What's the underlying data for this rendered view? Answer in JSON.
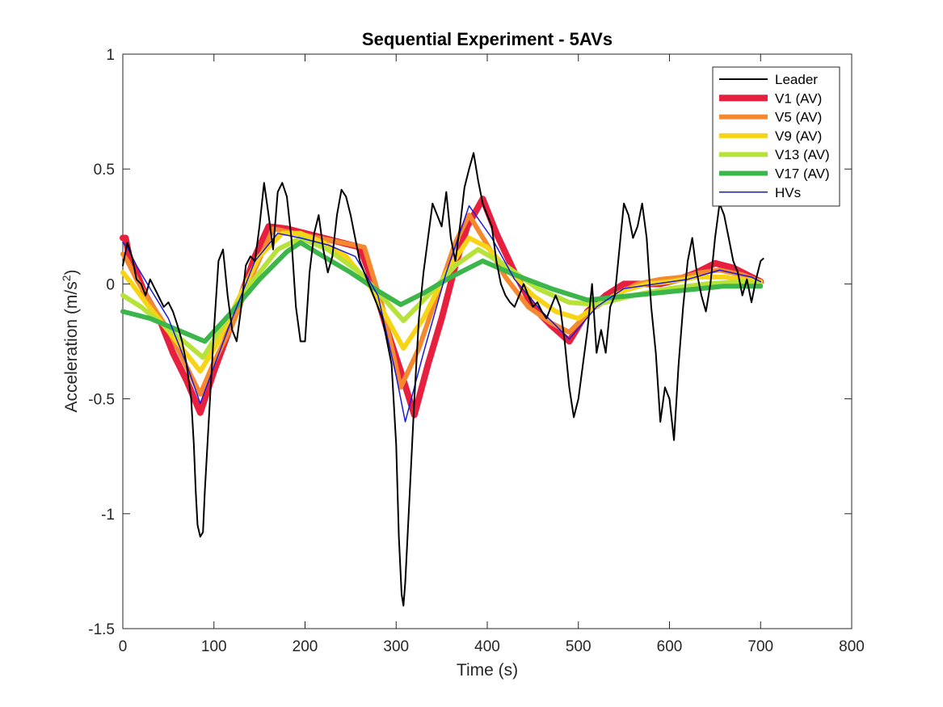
{
  "chart_data": {
    "type": "line",
    "title": "Sequential Experiment - 5AVs",
    "xlabel": "Time (s)",
    "ylabel_main": "Acceleration (m/s",
    "ylabel_sup": "2",
    "ylabel_close": ")",
    "xlim": [
      0,
      800
    ],
    "ylim": [
      -1.5,
      1
    ],
    "xticks": [
      0,
      100,
      200,
      300,
      400,
      500,
      600,
      700,
      800
    ],
    "xtick_labels": [
      "0",
      "100",
      "200",
      "300",
      "400",
      "500",
      "600",
      "700",
      "800"
    ],
    "yticks": [
      -1.5,
      -1,
      -0.5,
      0,
      0.5,
      1
    ],
    "ytick_labels": [
      "-1.5",
      "-1",
      "-0.5",
      "0",
      "0.5",
      "1"
    ],
    "grid": false,
    "legend_position": "top-right",
    "legend": [
      {
        "label": "Leader",
        "color": "#000000"
      },
      {
        "label": "V1 (AV)",
        "color": "#e8203f"
      },
      {
        "label": "V5 (AV)",
        "color": "#f5892f"
      },
      {
        "label": "V9 (AV)",
        "color": "#f7d416"
      },
      {
        "label": "V13 (AV)",
        "color": "#b7e23a"
      },
      {
        "label": "V17 (AV)",
        "color": "#3cb54a"
      },
      {
        "label": "HVs",
        "color": "#1a1adb"
      }
    ],
    "series": [
      {
        "name": "Leader",
        "color": "#000000",
        "x": [
          0,
          5,
          10,
          15,
          20,
          25,
          30,
          35,
          40,
          45,
          50,
          55,
          60,
          65,
          70,
          75,
          78,
          80,
          82,
          85,
          88,
          90,
          95,
          100,
          105,
          110,
          115,
          120,
          125,
          130,
          135,
          140,
          145,
          150,
          155,
          160,
          165,
          170,
          175,
          180,
          185,
          190,
          195,
          200,
          205,
          210,
          215,
          220,
          225,
          230,
          235,
          240,
          245,
          250,
          255,
          260,
          265,
          270,
          275,
          280,
          285,
          290,
          295,
          300,
          303,
          306,
          308,
          310,
          315,
          320,
          325,
          330,
          335,
          340,
          345,
          350,
          355,
          360,
          365,
          370,
          375,
          380,
          385,
          390,
          395,
          400,
          405,
          410,
          415,
          420,
          425,
          430,
          435,
          440,
          445,
          450,
          455,
          460,
          465,
          470,
          475,
          480,
          485,
          490,
          495,
          500,
          505,
          510,
          515,
          520,
          525,
          530,
          535,
          540,
          545,
          550,
          555,
          560,
          565,
          570,
          575,
          580,
          585,
          590,
          595,
          600,
          605,
          610,
          615,
          620,
          625,
          630,
          635,
          640,
          645,
          650,
          655,
          660,
          665,
          670,
          675,
          680,
          685,
          690,
          695,
          700,
          703
        ],
        "y": [
          0.08,
          0.18,
          0.12,
          0.02,
          0.0,
          -0.05,
          0.02,
          -0.02,
          -0.06,
          -0.1,
          -0.08,
          -0.12,
          -0.18,
          -0.25,
          -0.35,
          -0.5,
          -0.7,
          -0.9,
          -1.05,
          -1.1,
          -1.08,
          -0.9,
          -0.55,
          -0.2,
          0.1,
          0.15,
          -0.05,
          -0.2,
          -0.25,
          -0.1,
          0.08,
          0.12,
          0.1,
          0.25,
          0.44,
          0.3,
          0.15,
          0.4,
          0.44,
          0.38,
          0.2,
          -0.1,
          -0.25,
          -0.25,
          0.05,
          0.22,
          0.3,
          0.15,
          0.05,
          0.12,
          0.3,
          0.41,
          0.38,
          0.3,
          0.2,
          0.1,
          0.05,
          0.0,
          -0.05,
          -0.1,
          -0.15,
          -0.25,
          -0.35,
          -0.7,
          -1.1,
          -1.35,
          -1.4,
          -1.3,
          -0.9,
          -0.5,
          -0.15,
          0.05,
          0.2,
          0.35,
          0.3,
          0.25,
          0.4,
          0.2,
          0.1,
          0.25,
          0.42,
          0.5,
          0.57,
          0.45,
          0.35,
          0.3,
          0.25,
          0.1,
          0.0,
          -0.05,
          -0.08,
          -0.1,
          -0.05,
          0.0,
          -0.05,
          -0.1,
          -0.08,
          -0.12,
          -0.15,
          -0.1,
          -0.05,
          -0.1,
          -0.25,
          -0.45,
          -0.58,
          -0.5,
          -0.35,
          -0.2,
          0.0,
          -0.3,
          -0.2,
          -0.3,
          -0.1,
          -0.05,
          0.15,
          0.35,
          0.3,
          0.2,
          0.25,
          0.35,
          0.2,
          -0.1,
          -0.3,
          -0.6,
          -0.45,
          -0.5,
          -0.68,
          -0.35,
          -0.1,
          0.1,
          0.2,
          0.05,
          -0.05,
          -0.12,
          0.0,
          0.2,
          0.35,
          0.3,
          0.2,
          0.1,
          0.05,
          -0.05,
          0.02,
          -0.08,
          0.02,
          0.1,
          0.11
        ]
      },
      {
        "name": "V1 (AV)",
        "color": "#e8203f",
        "x": [
          0,
          3,
          8,
          15,
          25,
          40,
          55,
          70,
          85,
          100,
          115,
          130,
          145,
          160,
          180,
          200,
          220,
          240,
          260,
          275,
          290,
          305,
          320,
          335,
          350,
          365,
          378,
          395,
          410,
          430,
          450,
          470,
          490,
          510,
          530,
          550,
          570,
          590,
          610,
          630,
          650,
          670,
          685,
          700
        ],
        "y": [
          0.2,
          0.2,
          0.1,
          0.05,
          -0.05,
          -0.15,
          -0.3,
          -0.42,
          -0.56,
          -0.38,
          -0.22,
          -0.05,
          0.12,
          0.25,
          0.24,
          0.22,
          0.2,
          0.18,
          0.16,
          0.0,
          -0.2,
          -0.38,
          -0.57,
          -0.35,
          -0.15,
          0.08,
          0.25,
          0.37,
          0.22,
          0.05,
          -0.1,
          -0.18,
          -0.25,
          -0.12,
          -0.05,
          0.0,
          0.0,
          0.0,
          0.02,
          0.05,
          0.09,
          0.07,
          0.04,
          0.01
        ]
      },
      {
        "name": "V5 (AV)",
        "color": "#f5892f",
        "x": [
          0,
          5,
          15,
          30,
          50,
          70,
          85,
          100,
          120,
          140,
          165,
          190,
          215,
          240,
          265,
          285,
          305,
          325,
          345,
          365,
          380,
          400,
          420,
          445,
          470,
          490,
          515,
          540,
          565,
          590,
          615,
          635,
          655,
          680,
          700
        ],
        "y": [
          0.13,
          0.1,
          0.02,
          -0.08,
          -0.2,
          -0.36,
          -0.48,
          -0.34,
          -0.18,
          0.02,
          0.24,
          0.22,
          0.2,
          0.18,
          0.16,
          -0.1,
          -0.45,
          -0.28,
          -0.05,
          0.18,
          0.3,
          0.17,
          0.03,
          -0.1,
          -0.17,
          -0.21,
          -0.11,
          -0.05,
          0.0,
          0.02,
          0.03,
          0.05,
          0.06,
          0.04,
          0.01
        ]
      },
      {
        "name": "V9 (AV)",
        "color": "#f7d416",
        "x": [
          0,
          10,
          25,
          45,
          65,
          85,
          105,
          125,
          150,
          175,
          195,
          220,
          245,
          270,
          290,
          308,
          330,
          355,
          380,
          400,
          425,
          450,
          475,
          500,
          525,
          550,
          575,
          600,
          630,
          660,
          700
        ],
        "y": [
          0.05,
          0.0,
          -0.08,
          -0.18,
          -0.28,
          -0.38,
          -0.25,
          -0.08,
          0.12,
          0.22,
          0.22,
          0.18,
          0.12,
          0.0,
          -0.15,
          -0.28,
          -0.15,
          0.05,
          0.2,
          0.16,
          0.05,
          -0.05,
          -0.12,
          -0.15,
          -0.08,
          -0.03,
          0.0,
          0.01,
          0.03,
          0.03,
          0.01
        ]
      },
      {
        "name": "V13 (AV)",
        "color": "#b7e23a",
        "x": [
          0,
          20,
          45,
          70,
          88,
          110,
          140,
          170,
          195,
          225,
          260,
          290,
          308,
          335,
          365,
          390,
          420,
          455,
          490,
          520,
          560,
          600,
          640,
          680,
          700
        ],
        "y": [
          -0.05,
          -0.1,
          -0.18,
          -0.26,
          -0.32,
          -0.18,
          0.0,
          0.15,
          0.2,
          0.15,
          0.05,
          -0.08,
          -0.16,
          -0.05,
          0.08,
          0.15,
          0.08,
          -0.02,
          -0.08,
          -0.09,
          -0.05,
          -0.02,
          0.0,
          0.01,
          0.0
        ]
      },
      {
        "name": "V17 (AV)",
        "color": "#3cb54a",
        "x": [
          0,
          30,
          60,
          90,
          120,
          150,
          180,
          195,
          220,
          250,
          280,
          305,
          330,
          360,
          395,
          430,
          470,
          510,
          560,
          610,
          660,
          700
        ],
        "y": [
          -0.12,
          -0.15,
          -0.2,
          -0.25,
          -0.12,
          0.02,
          0.14,
          0.18,
          0.12,
          0.05,
          -0.03,
          -0.09,
          -0.04,
          0.03,
          0.1,
          0.04,
          -0.02,
          -0.07,
          -0.05,
          -0.03,
          -0.01,
          -0.01
        ]
      },
      {
        "name": "HVs",
        "color": "#1a1adb",
        "x": [
          0,
          5,
          15,
          30,
          50,
          70,
          85,
          100,
          120,
          145,
          170,
          195,
          225,
          255,
          280,
          300,
          310,
          330,
          355,
          380,
          405,
          430,
          460,
          490,
          520,
          550,
          585,
          620,
          655,
          690,
          700
        ],
        "y": [
          0.18,
          0.16,
          0.08,
          -0.02,
          -0.15,
          -0.35,
          -0.52,
          -0.36,
          -0.15,
          0.1,
          0.22,
          0.2,
          0.17,
          0.12,
          -0.05,
          -0.4,
          -0.6,
          -0.3,
          0.05,
          0.34,
          0.2,
          0.02,
          -0.12,
          -0.24,
          -0.1,
          -0.02,
          0.0,
          0.02,
          0.06,
          0.03,
          0.01
        ]
      }
    ]
  }
}
